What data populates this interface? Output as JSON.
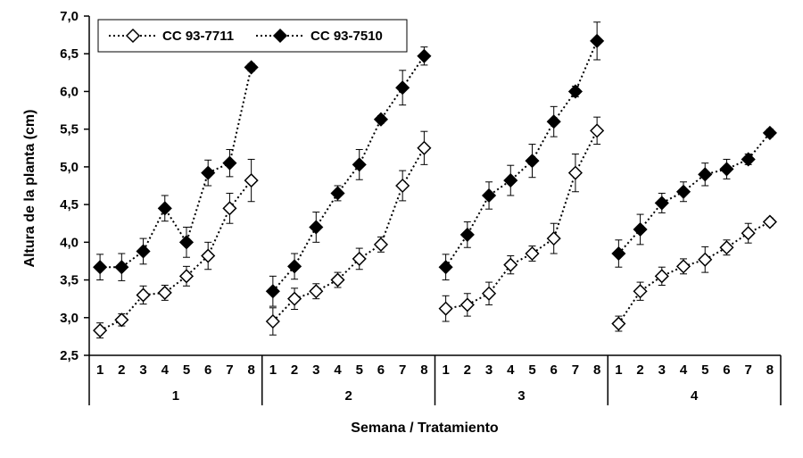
{
  "chart_data": {
    "type": "line",
    "xlabel": "Semana / Tratamiento",
    "ylabel": "Altura de la planta (cm)",
    "ylim": [
      2.5,
      7.0
    ],
    "ytick_labels": [
      "2,5",
      "3,0",
      "3,5",
      "4,0",
      "4,5",
      "5,0",
      "5,5",
      "6,0",
      "6,5",
      "7,0"
    ],
    "groups": [
      "1",
      "2",
      "3",
      "4"
    ],
    "weeks": [
      "1",
      "2",
      "3",
      "4",
      "5",
      "6",
      "7",
      "8"
    ],
    "legend_position": "top-left",
    "grid": false,
    "series": [
      {
        "name": "CC 93-7711",
        "marker": "open-diamond",
        "color": "#000000",
        "values": [
          [
            2.83,
            2.97,
            3.3,
            3.33,
            3.55,
            3.82,
            4.45,
            4.82
          ],
          [
            2.95,
            3.25,
            3.35,
            3.5,
            3.78,
            3.97,
            4.75,
            5.25
          ],
          [
            3.12,
            3.17,
            3.32,
            3.7,
            3.85,
            4.05,
            4.92,
            5.48
          ],
          [
            2.92,
            3.35,
            3.55,
            3.68,
            3.77,
            3.93,
            4.12,
            4.27
          ]
        ],
        "errors": [
          [
            0.1,
            0.08,
            0.12,
            0.1,
            0.13,
            0.18,
            0.2,
            0.28
          ],
          [
            0.18,
            0.14,
            0.1,
            0.1,
            0.14,
            0.1,
            0.2,
            0.22
          ],
          [
            0.17,
            0.15,
            0.15,
            0.12,
            0.1,
            0.2,
            0.25,
            0.18
          ],
          [
            0.1,
            0.12,
            0.12,
            0.1,
            0.17,
            0.1,
            0.13,
            0.05
          ]
        ]
      },
      {
        "name": "CC 93-7510",
        "marker": "filled-diamond",
        "color": "#000000",
        "values": [
          [
            3.67,
            3.67,
            3.88,
            4.45,
            4.0,
            4.92,
            5.05,
            6.32
          ],
          [
            3.35,
            3.68,
            4.2,
            4.65,
            5.03,
            5.63,
            6.05,
            6.47
          ],
          [
            3.67,
            4.1,
            4.62,
            4.82,
            5.08,
            5.6,
            6.0,
            6.67
          ],
          [
            3.85,
            4.17,
            4.52,
            4.67,
            4.9,
            4.97,
            5.1,
            5.45
          ]
        ],
        "errors": [
          [
            0.17,
            0.18,
            0.17,
            0.17,
            0.2,
            0.17,
            0.18,
            0.05
          ],
          [
            0.2,
            0.17,
            0.2,
            0.1,
            0.2,
            0.05,
            0.23,
            0.12
          ],
          [
            0.17,
            0.17,
            0.18,
            0.2,
            0.22,
            0.2,
            0.07,
            0.25
          ],
          [
            0.18,
            0.2,
            0.13,
            0.13,
            0.15,
            0.13,
            0.07,
            0.05
          ]
        ]
      }
    ]
  }
}
